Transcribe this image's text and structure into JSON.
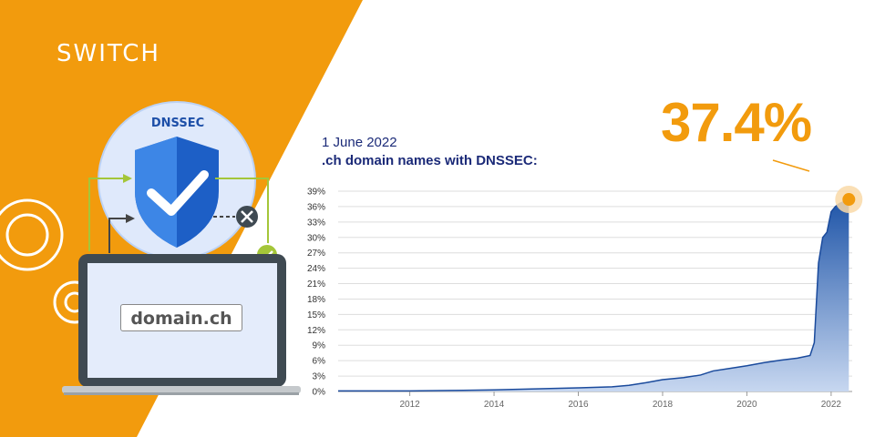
{
  "brand": {
    "logo_text": "SWITCH",
    "orange": "#f29b0d",
    "navy": "#1b2a78"
  },
  "illustration": {
    "badge_label": "DNSSEC",
    "domain_label": "domain.ch",
    "icons": [
      "shield-check-icon",
      "gear-icon",
      "laptop-icon",
      "check-circle-icon",
      "close-circle-icon"
    ]
  },
  "headline": {
    "value": "37.4%"
  },
  "chart_data": {
    "type": "area",
    "title": "1 June 2022",
    "subtitle": ".ch domain names with DNSSEC:",
    "xlabel": "",
    "ylabel": "",
    "xlim": [
      2010.3,
      2022.5
    ],
    "ylim": [
      0,
      39
    ],
    "y_ticks": [
      "0%",
      "3%",
      "6%",
      "9%",
      "12%",
      "15%",
      "18%",
      "21%",
      "24%",
      "27%",
      "30%",
      "33%",
      "36%",
      "39%"
    ],
    "y_tick_values": [
      0,
      3,
      6,
      9,
      12,
      15,
      18,
      21,
      24,
      27,
      30,
      33,
      36,
      39
    ],
    "x_ticks": [
      "2012",
      "2014",
      "2016",
      "2018",
      "2020",
      "2022"
    ],
    "x_tick_values": [
      2012,
      2014,
      2016,
      2018,
      2020,
      2022
    ],
    "grid": true,
    "series": [
      {
        "x": [
          2010.3,
          2012,
          2013,
          2014,
          2015,
          2016,
          2016.8,
          2017.2,
          2017.6,
          2018,
          2018.5,
          2018.9,
          2019.2,
          2019.6,
          2020,
          2020.4,
          2020.8,
          2021.2,
          2021.5,
          2021.6,
          2021.7,
          2021.8,
          2021.9,
          2022.0,
          2022.1,
          2022.2,
          2022.42
        ],
        "values": [
          0.1,
          0.1,
          0.2,
          0.3,
          0.5,
          0.7,
          0.9,
          1.2,
          1.7,
          2.3,
          2.7,
          3.2,
          4.0,
          4.5,
          5.0,
          5.6,
          6.1,
          6.5,
          7.0,
          9.5,
          25,
          30,
          31,
          35,
          36,
          36.6,
          37.4
        ]
      }
    ],
    "highlight": {
      "x": 2022.42,
      "y": 37.4
    }
  }
}
